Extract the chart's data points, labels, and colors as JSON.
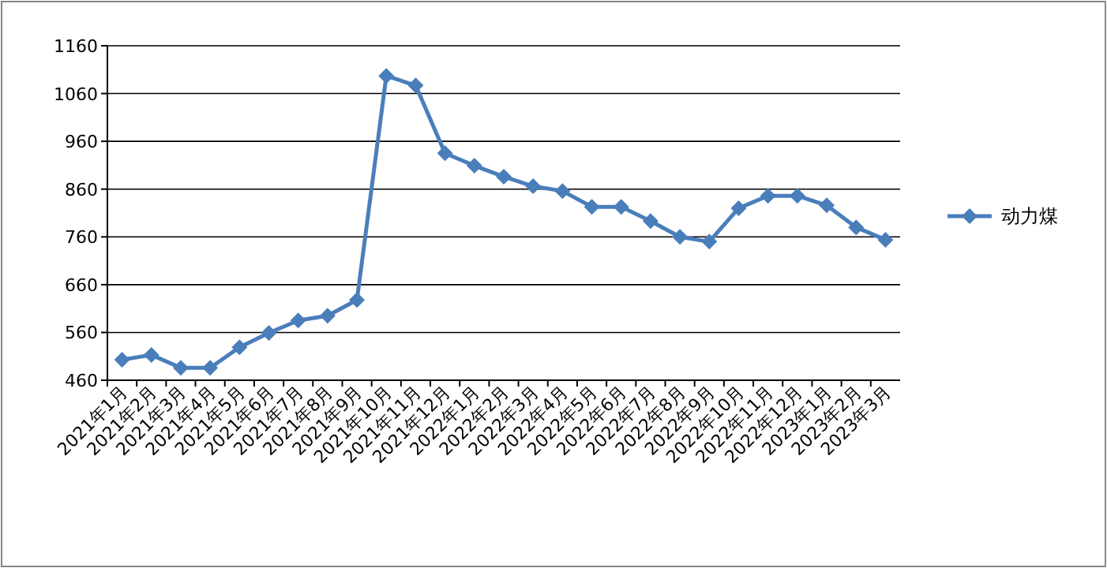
{
  "chart_data": {
    "type": "line",
    "categories": [
      "2021年1月",
      "2021年2月",
      "2021年3月",
      "2021年4月",
      "2021年5月",
      "2021年6月",
      "2021年7月",
      "2021年8月",
      "2021年9月",
      "2021年10月",
      "2021年11月",
      "2021年12月",
      "2022年1月",
      "2022年2月",
      "2022年3月",
      "2022年4月",
      "2022年5月",
      "2022年6月",
      "2022年7月",
      "2022年8月",
      "2022年9月",
      "2022年10月",
      "2022年11月",
      "2022年12月",
      "2023年1月",
      "2023年2月",
      "2023年3月"
    ],
    "series": [
      {
        "name": "动力煤",
        "color": "#4a7ebb",
        "values": [
          503,
          513,
          486,
          486,
          529,
          559,
          585,
          595,
          628,
          1097,
          1077,
          935,
          909,
          886,
          866,
          856,
          823,
          823,
          793,
          760,
          750,
          820,
          846,
          846,
          826,
          780,
          754
        ]
      }
    ],
    "ylim": [
      460,
      1160
    ],
    "yticks": [
      460,
      560,
      660,
      760,
      860,
      960,
      1060,
      1160
    ],
    "grid": "y",
    "legend": "right",
    "marker": "diamond",
    "line_style": "solid"
  }
}
